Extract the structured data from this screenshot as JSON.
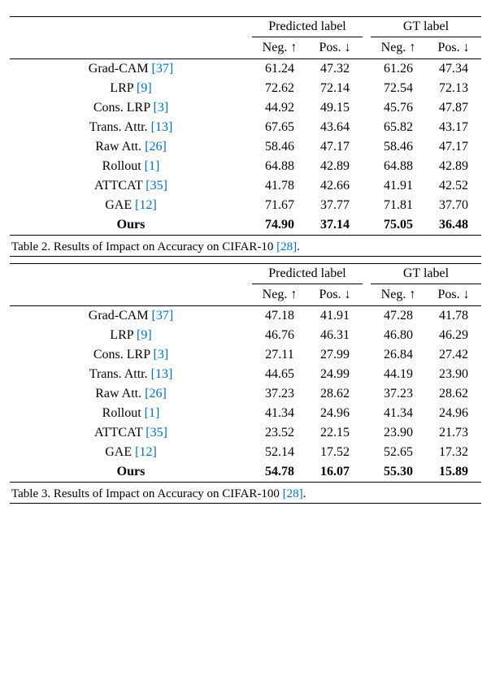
{
  "common": {
    "group_headers": [
      "Predicted label",
      "GT label"
    ],
    "sub_headers": [
      "Neg. ↑",
      "Pos. ↓",
      "Neg. ↑",
      "Pos. ↓"
    ],
    "methods": [
      {
        "label": "Grad-CAM",
        "cite": "[37]"
      },
      {
        "label": "LRP",
        "cite": "[9]"
      },
      {
        "label": "Cons. LRP",
        "cite": "[3]"
      },
      {
        "label": "Trans. Attr.",
        "cite": "[13]"
      },
      {
        "label": "Raw Att.",
        "cite": "[26]"
      },
      {
        "label": "Rollout",
        "cite": "[1]"
      },
      {
        "label": "ATTCAT",
        "cite": "[35]"
      },
      {
        "label": "GAE",
        "cite": "[12]"
      },
      {
        "label": "Ours",
        "cite": "",
        "bold": true
      }
    ],
    "cite_color": "#0070c0",
    "background_color": "#ffffff",
    "text_color": "#000000",
    "font_family": "Times New Roman",
    "body_fontsize": 16,
    "caption_fontsize": 15,
    "caption_cite": "[28]"
  },
  "table2": {
    "caption_prefix": "Table 2. Results of Impact on Accuracy on CIFAR-10 ",
    "caption_suffix": ".",
    "rows": [
      [
        "61.24",
        "47.32",
        "61.26",
        "47.34"
      ],
      [
        "72.62",
        "72.14",
        "72.54",
        "72.13"
      ],
      [
        "44.92",
        "49.15",
        "45.76",
        "47.87"
      ],
      [
        "67.65",
        "43.64",
        "65.82",
        "43.17"
      ],
      [
        "58.46",
        "47.17",
        "58.46",
        "47.17"
      ],
      [
        "64.88",
        "42.89",
        "64.88",
        "42.89"
      ],
      [
        "41.78",
        "42.66",
        "41.91",
        "42.52"
      ],
      [
        "71.67",
        "37.77",
        "71.81",
        "37.70"
      ],
      [
        "74.90",
        "37.14",
        "75.05",
        "36.48"
      ]
    ],
    "bold_rows": [
      8
    ]
  },
  "table3": {
    "caption_prefix": "Table 3. Results of Impact on Accuracy on CIFAR-100 ",
    "caption_suffix": ".",
    "rows": [
      [
        "47.18",
        "41.91",
        "47.28",
        "41.78"
      ],
      [
        "46.76",
        "46.31",
        "46.80",
        "46.29"
      ],
      [
        "27.11",
        "27.99",
        "26.84",
        "27.42"
      ],
      [
        "44.65",
        "24.99",
        "44.19",
        "23.90"
      ],
      [
        "37.23",
        "28.62",
        "37.23",
        "28.62"
      ],
      [
        "41.34",
        "24.96",
        "41.34",
        "24.96"
      ],
      [
        "23.52",
        "22.15",
        "23.90",
        "21.73"
      ],
      [
        "52.14",
        "17.52",
        "52.65",
        "17.32"
      ],
      [
        "54.78",
        "16.07",
        "55.30",
        "15.89"
      ]
    ],
    "bold_rows": [
      8
    ]
  }
}
